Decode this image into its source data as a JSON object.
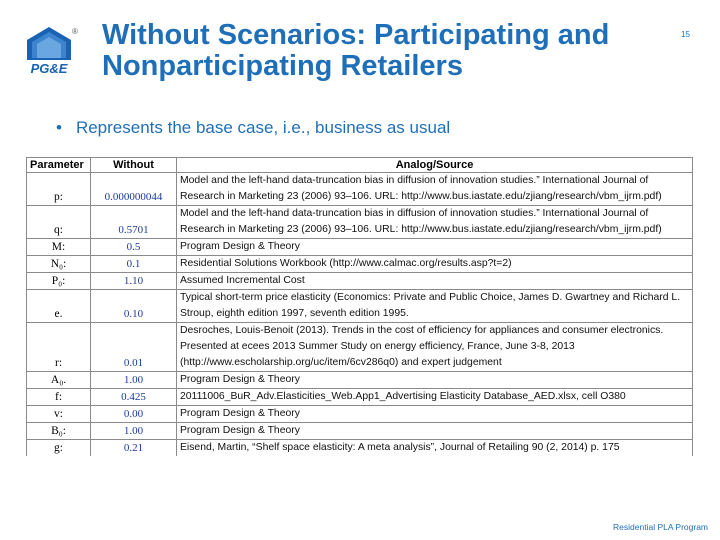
{
  "logo": {
    "text": "PG&E",
    "registered": "®"
  },
  "page_number": "15",
  "title": "Without Scenarios: Participating and Nonparticipating Retailers",
  "bullet": "Represents the base case, i.e., business as usual",
  "table": {
    "headers": [
      "Parameter",
      "Without",
      "Analog/Source"
    ],
    "rows": [
      {
        "param": "p:",
        "without": "0.000000044",
        "source": "Model and the left-hand data-truncation bias in diffusion of innovation studies.” International Journal of Research in Marketing 23 (2006) 93–106. URL: http://www.bus.iastate.edu/zjiang/research/vbm_ijrm.pdf)"
      },
      {
        "param": "q:",
        "without": "0.5701",
        "source": "Model and the left-hand data-truncation bias in diffusion of innovation studies.” International Journal of Research in Marketing 23 (2006) 93–106. URL: http://www.bus.iastate.edu/zjiang/research/vbm_ijrm.pdf)"
      },
      {
        "param": "M:",
        "without": "0.5",
        "source": "Program Design & Theory"
      },
      {
        "param": "N₀:",
        "without": "0.1",
        "source": "Residential Solutions Workbook (http://www.calmac.org/results.asp?t=2)"
      },
      {
        "param": "P₀:",
        "without": "1.10",
        "source": "Assumed Incremental Cost"
      },
      {
        "param": "e.",
        "without": "0.10",
        "source": "Typical short-term price elasticity (Economics: Private and Public Choice, James D. Gwartney and Richard L. Stroup, eighth edition 1997, seventh edition 1995."
      },
      {
        "param": "r:",
        "without": "0.01",
        "source": "Desroches, Louis-Benoit (2013). Trends in the cost of efficiency for appliances and consumer electronics. Presented at ecees 2013 Summer Study on energy efficiency, France, June 3-8, 2013 (http://www.escholarship.org/uc/item/6cv286q0) and expert judgement"
      },
      {
        "param": "A₀.",
        "without": "1.00",
        "source": "Program Design & Theory"
      },
      {
        "param": "f:",
        "without": "0.425",
        "source": "20111006_BuR_Adv.Elasticities_Web.App1_Advertising Elasticity Database_AED.xlsx, cell O380"
      },
      {
        "param": "v:",
        "without": "0.00",
        "source": "Program Design & Theory"
      },
      {
        "param": "B₀:",
        "without": "1.00",
        "source": "Program Design & Theory"
      },
      {
        "param": "g:",
        "without": "0.21",
        "source": "Eisend, Martin, “Shelf space elasticity: A meta analysis”, Journal of Retailing 90 (2, 2014) p. 175"
      }
    ]
  },
  "footer": "Residential PLA Program",
  "colors": {
    "accent": "#1f6fb8",
    "logo_blue": "#1a62b3"
  }
}
